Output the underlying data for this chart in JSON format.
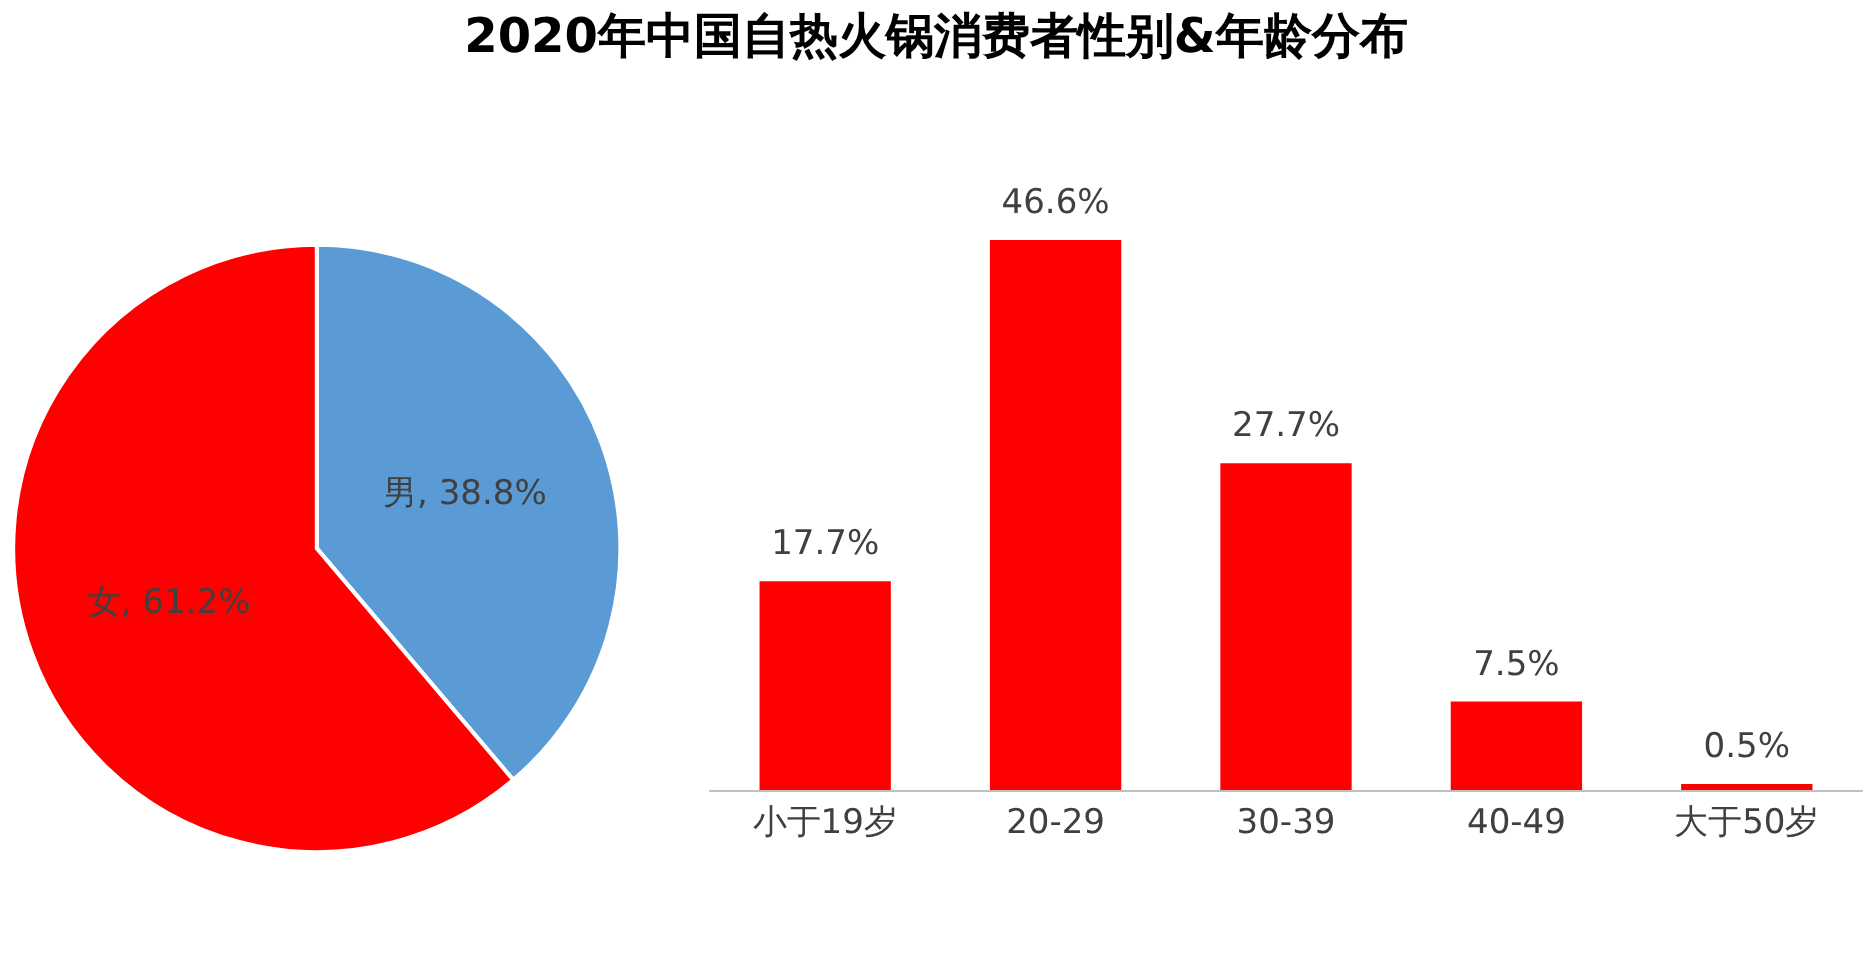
{
  "chart_data": [
    {
      "type": "other",
      "title": "2020年中国自热火锅消费者性别&年龄分布"
    },
    {
      "type": "pie",
      "categories": [
        "男",
        "女"
      ],
      "values": [
        38.8,
        61.2
      ],
      "colors": [
        "#5b9bd5",
        "#ff0000"
      ],
      "value_labels": [
        "38.8%",
        "61.2%"
      ]
    },
    {
      "type": "bar",
      "categories": [
        "小于19岁",
        "20-29",
        "30-39",
        "40-49",
        "大于50岁"
      ],
      "values": [
        17.7,
        46.6,
        27.7,
        7.5,
        0.5
      ],
      "color": "#ff0000",
      "value_labels": [
        "17.7%",
        "46.6%",
        "27.7%",
        "7.5%",
        "0.5%"
      ]
    }
  ]
}
